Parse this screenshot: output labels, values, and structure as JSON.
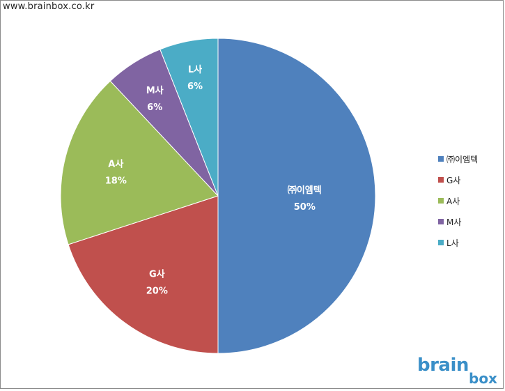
{
  "site_url": "www.brainbox.co.kr",
  "chart_data": {
    "type": "pie",
    "title": "",
    "categories": [
      "㈜이엠텍",
      "G사",
      "A사",
      "M사",
      "L사"
    ],
    "values": [
      50,
      20,
      18,
      6,
      6
    ],
    "value_labels": [
      "50%",
      "20%",
      "18%",
      "6%",
      "6%"
    ],
    "colors": [
      "#4f81bd",
      "#c0504d",
      "#9bbb59",
      "#8064a2",
      "#4bacc6"
    ],
    "legend_position": "right"
  },
  "logo": {
    "line1": "brain",
    "line2": "box"
  }
}
